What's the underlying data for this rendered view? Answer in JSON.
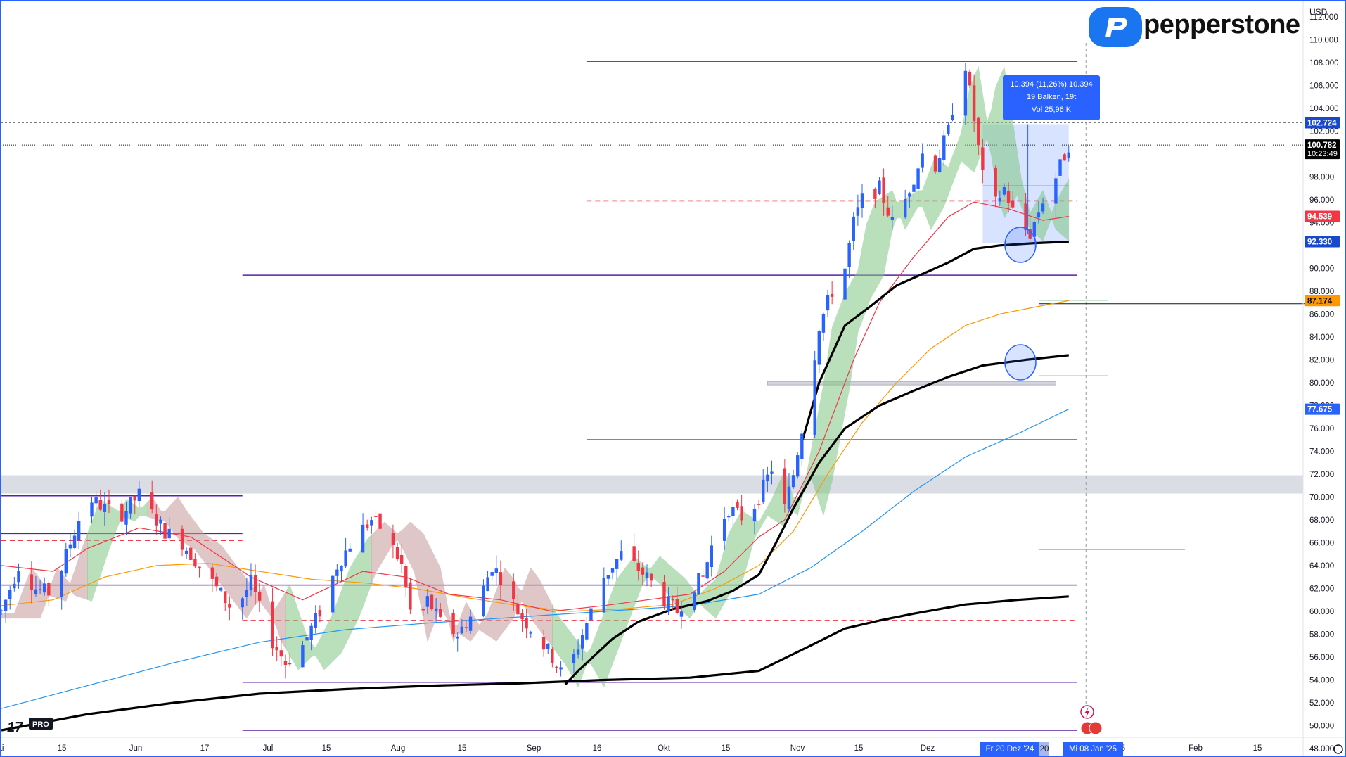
{
  "header": {
    "currency": "USD",
    "brand": "pepperstone",
    "tv_badge": "PRO"
  },
  "theme": {
    "bull": "#2962ff",
    "bear": "#f23645",
    "ema_red": "#f23645",
    "ema_orange": "#ff9800",
    "ema_blue": "#2196f3",
    "ema_black": "#000000",
    "level_purple": "#5b1fa8",
    "level_red_dashed": "#f23645",
    "cloud_green": "#81c784",
    "cloud_red": "#c69a9a",
    "brand_blue": "#1976f0"
  },
  "price_axis": {
    "ticks": [
      "112.000",
      "110.000",
      "108.000",
      "106.000",
      "104.000",
      "102.000",
      "98.000",
      "96.000",
      "94.000",
      "90.000",
      "88.000",
      "86.000",
      "84.000",
      "82.000",
      "80.000",
      "78.000",
      "76.000",
      "74.000",
      "72.000",
      "70.000",
      "68.000",
      "66.000",
      "64.000",
      "62.000",
      "60.000",
      "58.000",
      "56.000",
      "54.000",
      "52.000",
      "50.000",
      "48.000"
    ],
    "labels": [
      {
        "value": 102.724,
        "text": "102.724",
        "bg": "#1848cc",
        "fg": "#ffffff"
      },
      {
        "value": 100.782,
        "text": "100.782",
        "sub": "10:23:49",
        "bg": "#000000",
        "fg": "#ffffff"
      },
      {
        "value": 94.539,
        "text": "94.539",
        "bg": "#f23645",
        "fg": "#ffffff"
      },
      {
        "value": 92.33,
        "text": "92.330",
        "bg": "#1848cc",
        "fg": "#ffffff"
      },
      {
        "value": 87.174,
        "text": "87.174",
        "bg": "#ff9800",
        "fg": "#000000"
      },
      {
        "value": 77.675,
        "text": "77.675",
        "bg": "#2962ff",
        "fg": "#ffffff"
      }
    ]
  },
  "time_axis": {
    "ticks": [
      "ai",
      "15",
      "Jun",
      "17",
      "Jul",
      "15",
      "Aug",
      "15",
      "Sep",
      "16",
      "Okt",
      "15",
      "Nov",
      "15",
      "Dez",
      "20",
      "5",
      "Feb",
      "15"
    ],
    "highlight_left": "Fr 20 Dez '24",
    "highlight_right": "Mi 08 Jan '25"
  },
  "measure_tooltip": {
    "line1": "10.394 (11,26%) 10.394",
    "line2": "19 Balken, 19t",
    "line3": "Vol 25,96 K"
  },
  "chart_data": {
    "type": "candlestick",
    "title": "",
    "y_range": [
      47.2,
      113.4
    ],
    "x_range": [
      "2024-05-01",
      "2025-02-26"
    ],
    "y_ticks": [
      48,
      50,
      52,
      54,
      56,
      58,
      60,
      62,
      64,
      66,
      68,
      70,
      72,
      74,
      76,
      78,
      80,
      82,
      84,
      86,
      88,
      90,
      94,
      96,
      98,
      102,
      104,
      106,
      108,
      110,
      112
    ],
    "current_price": 100.782,
    "countdown": "10:23:49",
    "key_prices": [
      102.724,
      100.782,
      94.539,
      92.33,
      87.174,
      77.675
    ],
    "price_path": [
      [
        0,
        60.0
      ],
      [
        4,
        64.0
      ],
      [
        8,
        62.0
      ],
      [
        12,
        61.5
      ],
      [
        16,
        66.0
      ],
      [
        20,
        70.0
      ],
      [
        24,
        69.0
      ],
      [
        28,
        68.5
      ],
      [
        32,
        70.2
      ],
      [
        34,
        69.0
      ],
      [
        38,
        67.0
      ],
      [
        42,
        66.0
      ],
      [
        46,
        64.0
      ],
      [
        50,
        62.0
      ],
      [
        54,
        60.0
      ],
      [
        58,
        62.5
      ],
      [
        62,
        58.0
      ],
      [
        66,
        55.5
      ],
      [
        70,
        57.0
      ],
      [
        74,
        60.0
      ],
      [
        78,
        64.0
      ],
      [
        82,
        66.5
      ],
      [
        86,
        68.0
      ],
      [
        89,
        67.0
      ],
      [
        93,
        64.0
      ],
      [
        96,
        58.0
      ],
      [
        99,
        61.0
      ],
      [
        102,
        59.0
      ],
      [
        106,
        58.0
      ],
      [
        110,
        60.0
      ],
      [
        114,
        64.0
      ],
      [
        116,
        63.0
      ],
      [
        120,
        60.0
      ],
      [
        124,
        58.0
      ],
      [
        128,
        56.0
      ],
      [
        131,
        54.0
      ],
      [
        134,
        57.0
      ],
      [
        137,
        60.0
      ],
      [
        140,
        63.0
      ],
      [
        144,
        65.0
      ],
      [
        147,
        64.0
      ],
      [
        150,
        63.0
      ],
      [
        154,
        61.0
      ],
      [
        157,
        60.0
      ],
      [
        160,
        62.0
      ],
      [
        163,
        63.0
      ],
      [
        166,
        67.0
      ],
      [
        169,
        69.0
      ],
      [
        173,
        68.0
      ],
      [
        176,
        70.0
      ],
      [
        179,
        72.5
      ],
      [
        182,
        69.0
      ],
      [
        184,
        72.0
      ],
      [
        186,
        76.0
      ],
      [
        188,
        80.0
      ],
      [
        190,
        85.0
      ],
      [
        193,
        88.0
      ],
      [
        196,
        90.0
      ],
      [
        198,
        94.0
      ],
      [
        200,
        96.0
      ],
      [
        204,
        97.0
      ],
      [
        207,
        94.0
      ],
      [
        210,
        96.0
      ],
      [
        214,
        100.0
      ],
      [
        217,
        99.0
      ],
      [
        220,
        102.0
      ],
      [
        222,
        106.0
      ],
      [
        224,
        107.8
      ],
      [
        226,
        103.0
      ],
      [
        228,
        98.0
      ],
      [
        230,
        95.0
      ],
      [
        233,
        97.0
      ],
      [
        236,
        94.0
      ],
      [
        239,
        93.0
      ],
      [
        242,
        96.0
      ],
      [
        245,
        98.0
      ],
      [
        248,
        100.8
      ]
    ],
    "ema_red": [
      [
        0,
        64.0
      ],
      [
        12,
        63.5
      ],
      [
        20,
        65.5
      ],
      [
        32,
        67.3
      ],
      [
        44,
        66.5
      ],
      [
        58,
        63.0
      ],
      [
        70,
        61.0
      ],
      [
        84,
        63.5
      ],
      [
        94,
        63.0
      ],
      [
        104,
        61.5
      ],
      [
        116,
        61.0
      ],
      [
        128,
        60.0
      ],
      [
        140,
        60.5
      ],
      [
        150,
        61.0
      ],
      [
        160,
        61.5
      ],
      [
        168,
        63.5
      ],
      [
        176,
        66.5
      ],
      [
        182,
        68.0
      ],
      [
        190,
        74.0
      ],
      [
        198,
        82.0
      ],
      [
        204,
        87.0
      ],
      [
        212,
        91.0
      ],
      [
        220,
        94.5
      ],
      [
        226,
        95.8
      ],
      [
        234,
        95.2
      ],
      [
        242,
        94.2
      ],
      [
        248,
        94.54
      ]
    ],
    "ema_orange": [
      [
        0,
        60.5
      ],
      [
        12,
        61.0
      ],
      [
        24,
        63.0
      ],
      [
        36,
        64.0
      ],
      [
        48,
        64.2
      ],
      [
        60,
        63.5
      ],
      [
        72,
        62.8
      ],
      [
        84,
        62.5
      ],
      [
        96,
        62.0
      ],
      [
        108,
        61.2
      ],
      [
        120,
        60.5
      ],
      [
        132,
        60.0
      ],
      [
        144,
        60.2
      ],
      [
        156,
        60.6
      ],
      [
        166,
        62.0
      ],
      [
        176,
        64.0
      ],
      [
        184,
        67.0
      ],
      [
        192,
        72.0
      ],
      [
        200,
        76.5
      ],
      [
        208,
        80.0
      ],
      [
        216,
        83.0
      ],
      [
        224,
        85.0
      ],
      [
        232,
        86.0
      ],
      [
        240,
        86.6
      ],
      [
        248,
        87.17
      ]
    ],
    "ema_blue": [
      [
        0,
        51.5
      ],
      [
        20,
        53.5
      ],
      [
        40,
        55.5
      ],
      [
        60,
        57.3
      ],
      [
        80,
        58.4
      ],
      [
        100,
        59.0
      ],
      [
        120,
        59.5
      ],
      [
        140,
        60.0
      ],
      [
        160,
        60.5
      ],
      [
        176,
        61.5
      ],
      [
        188,
        63.8
      ],
      [
        200,
        67.0
      ],
      [
        212,
        70.5
      ],
      [
        224,
        73.5
      ],
      [
        236,
        75.5
      ],
      [
        248,
        77.68
      ]
    ],
    "ema_black_200": [
      [
        0,
        49.6
      ],
      [
        20,
        51.0
      ],
      [
        40,
        52.0
      ],
      [
        60,
        52.8
      ],
      [
        80,
        53.2
      ],
      [
        100,
        53.5
      ],
      [
        120,
        53.7
      ],
      [
        140,
        54.0
      ],
      [
        160,
        54.2
      ],
      [
        176,
        54.8
      ],
      [
        188,
        57.0
      ],
      [
        196,
        58.5
      ],
      [
        204,
        59.2
      ],
      [
        212,
        59.8
      ],
      [
        224,
        60.6
      ],
      [
        236,
        61.0
      ],
      [
        248,
        61.3
      ]
    ],
    "ema_black_100_path": [
      [
        131,
        53.6
      ],
      [
        134,
        54.8
      ],
      [
        138,
        56.2
      ],
      [
        142,
        57.6
      ],
      [
        148,
        59.1
      ],
      [
        156,
        60.2
      ],
      [
        164,
        60.9
      ],
      [
        170,
        61.8
      ],
      [
        176,
        63.2
      ],
      [
        180,
        66.0
      ],
      [
        184,
        69.0
      ],
      [
        190,
        73.0
      ],
      [
        196,
        76.0
      ],
      [
        204,
        78.0
      ],
      [
        212,
        79.3
      ],
      [
        220,
        80.5
      ],
      [
        228,
        81.5
      ],
      [
        238,
        82.0
      ],
      [
        248,
        82.4
      ]
    ],
    "ema_black_50_path": [
      [
        186,
        74.8
      ],
      [
        190,
        80.0
      ],
      [
        196,
        85.0
      ],
      [
        202,
        86.7
      ],
      [
        208,
        88.5
      ],
      [
        214,
        89.5
      ],
      [
        220,
        90.5
      ],
      [
        226,
        91.7
      ],
      [
        232,
        92.0
      ],
      [
        240,
        92.2
      ],
      [
        248,
        92.33
      ]
    ],
    "horizontal_levels": [
      {
        "y": 108.1,
        "x0": 136,
        "x1": 250,
        "style": "solid",
        "color": "purple"
      },
      {
        "y": 89.4,
        "x0": 56,
        "x1": 250,
        "style": "solid",
        "color": "purple"
      },
      {
        "y": 75.0,
        "x0": 136,
        "x1": 250,
        "style": "solid",
        "color": "purple"
      },
      {
        "y": 70.1,
        "x0": 0,
        "x1": 56,
        "style": "solid",
        "color": "purple"
      },
      {
        "y": 66.8,
        "x0": 0,
        "x1": 56,
        "style": "solid",
        "color": "purple"
      },
      {
        "y": 62.3,
        "x0": 0,
        "x1": 250,
        "style": "solid",
        "color": "purple"
      },
      {
        "y": 53.8,
        "x0": 56,
        "x1": 250,
        "style": "solid",
        "color": "purple"
      },
      {
        "y": 49.6,
        "x0": 56,
        "x1": 250,
        "style": "solid",
        "color": "purple"
      },
      {
        "y": 95.9,
        "x0": 136,
        "x1": 250,
        "style": "dashed",
        "color": "red"
      },
      {
        "y": 59.2,
        "x0": 56,
        "x1": 250,
        "style": "dashed",
        "color": "red"
      },
      {
        "y": 66.2,
        "x0": 0,
        "x1": 56,
        "style": "dashed",
        "color": "red"
      }
    ],
    "zones": [
      {
        "y0": 70.3,
        "y1": 71.9,
        "label": "supply zone"
      },
      {
        "y0": 79.8,
        "y1": 80.1,
        "label": "level band"
      }
    ],
    "legend": "none",
    "grid": false
  }
}
